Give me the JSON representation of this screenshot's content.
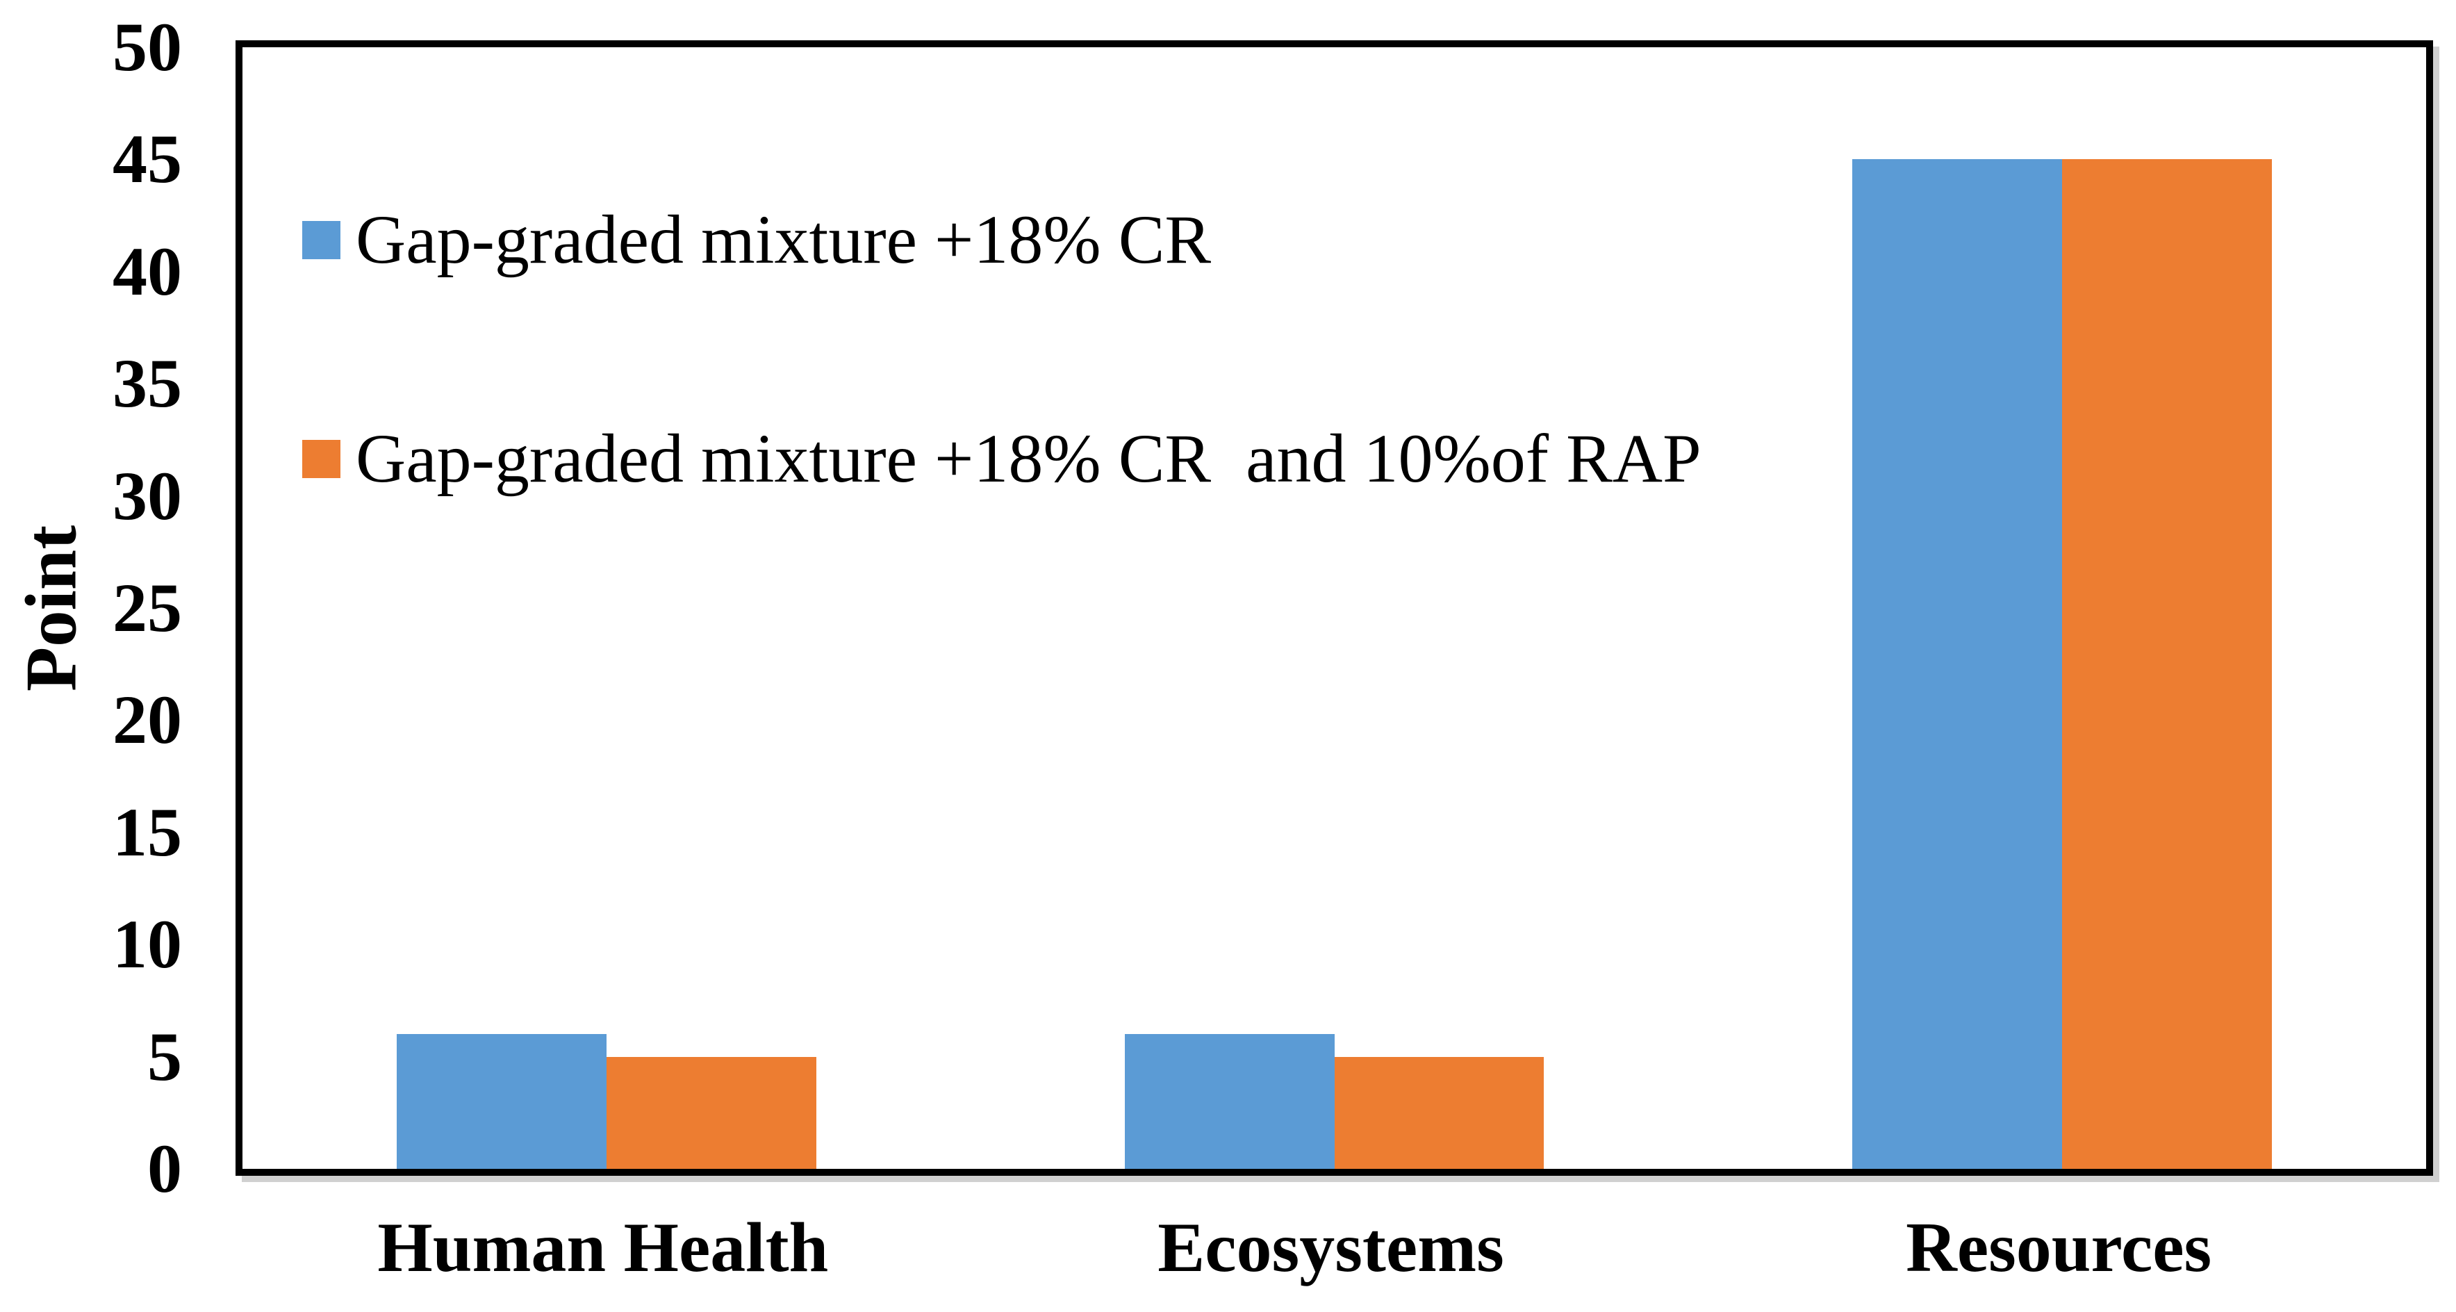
{
  "figure": {
    "background": "#ffffff",
    "frame_color": "#000000"
  },
  "chart_data": {
    "type": "bar",
    "title": "",
    "xlabel": "",
    "ylabel": "Point",
    "categories": [
      "Human Health",
      "Ecosystems",
      "Resources"
    ],
    "series": [
      {
        "name": "Gap-graded mixture +18% CR",
        "color": "#5B9BD5",
        "values": [
          6,
          6,
          45
        ]
      },
      {
        "name": "Gap-graded mixture +18% CR  and 10%of RAP",
        "color": "#ED7D31",
        "values": [
          5,
          5,
          45
        ]
      }
    ],
    "ylim": [
      0,
      50
    ],
    "yticks": [
      0,
      5,
      10,
      15,
      20,
      25,
      30,
      35,
      40,
      45,
      50
    ],
    "grid": false,
    "legend_position": "top-left-inside"
  }
}
